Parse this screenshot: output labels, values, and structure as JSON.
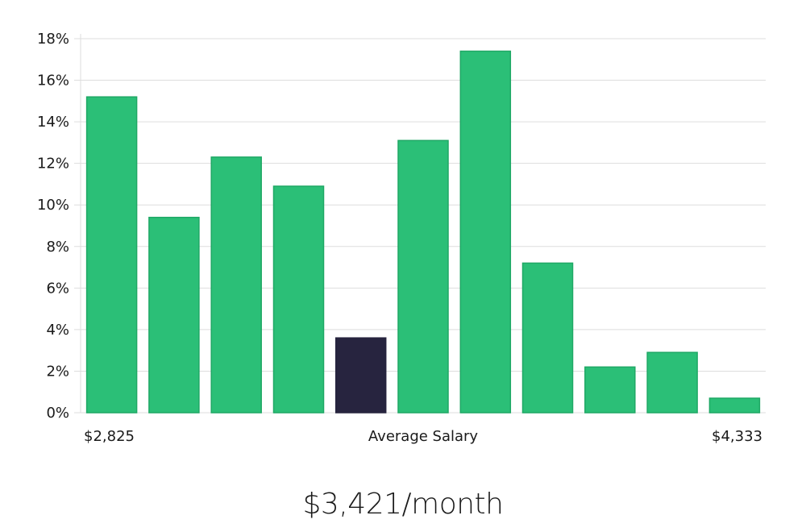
{
  "chart_data": {
    "type": "bar",
    "title": "",
    "xlabel": "Average Salary",
    "ylabel": "",
    "x_start_label": "$2,825",
    "x_end_label": "$4,333",
    "ylim": [
      0,
      18
    ],
    "y_ticks": [
      0,
      2,
      4,
      6,
      8,
      10,
      12,
      14,
      16,
      18
    ],
    "y_tick_labels": [
      "0%",
      "2%",
      "4%",
      "6%",
      "8%",
      "10%",
      "12%",
      "14%",
      "16%",
      "18%"
    ],
    "grid": true,
    "values": [
      15.2,
      9.4,
      12.3,
      10.9,
      3.6,
      13.1,
      17.4,
      7.2,
      2.2,
      2.9,
      0.7
    ],
    "highlight_index": 4,
    "colors": {
      "bar": "#2bbf77",
      "bar_stroke": "#1fa865",
      "highlight": "#27243f",
      "grid": "#dddddd"
    }
  },
  "average_salary_text": "$3,421/month"
}
